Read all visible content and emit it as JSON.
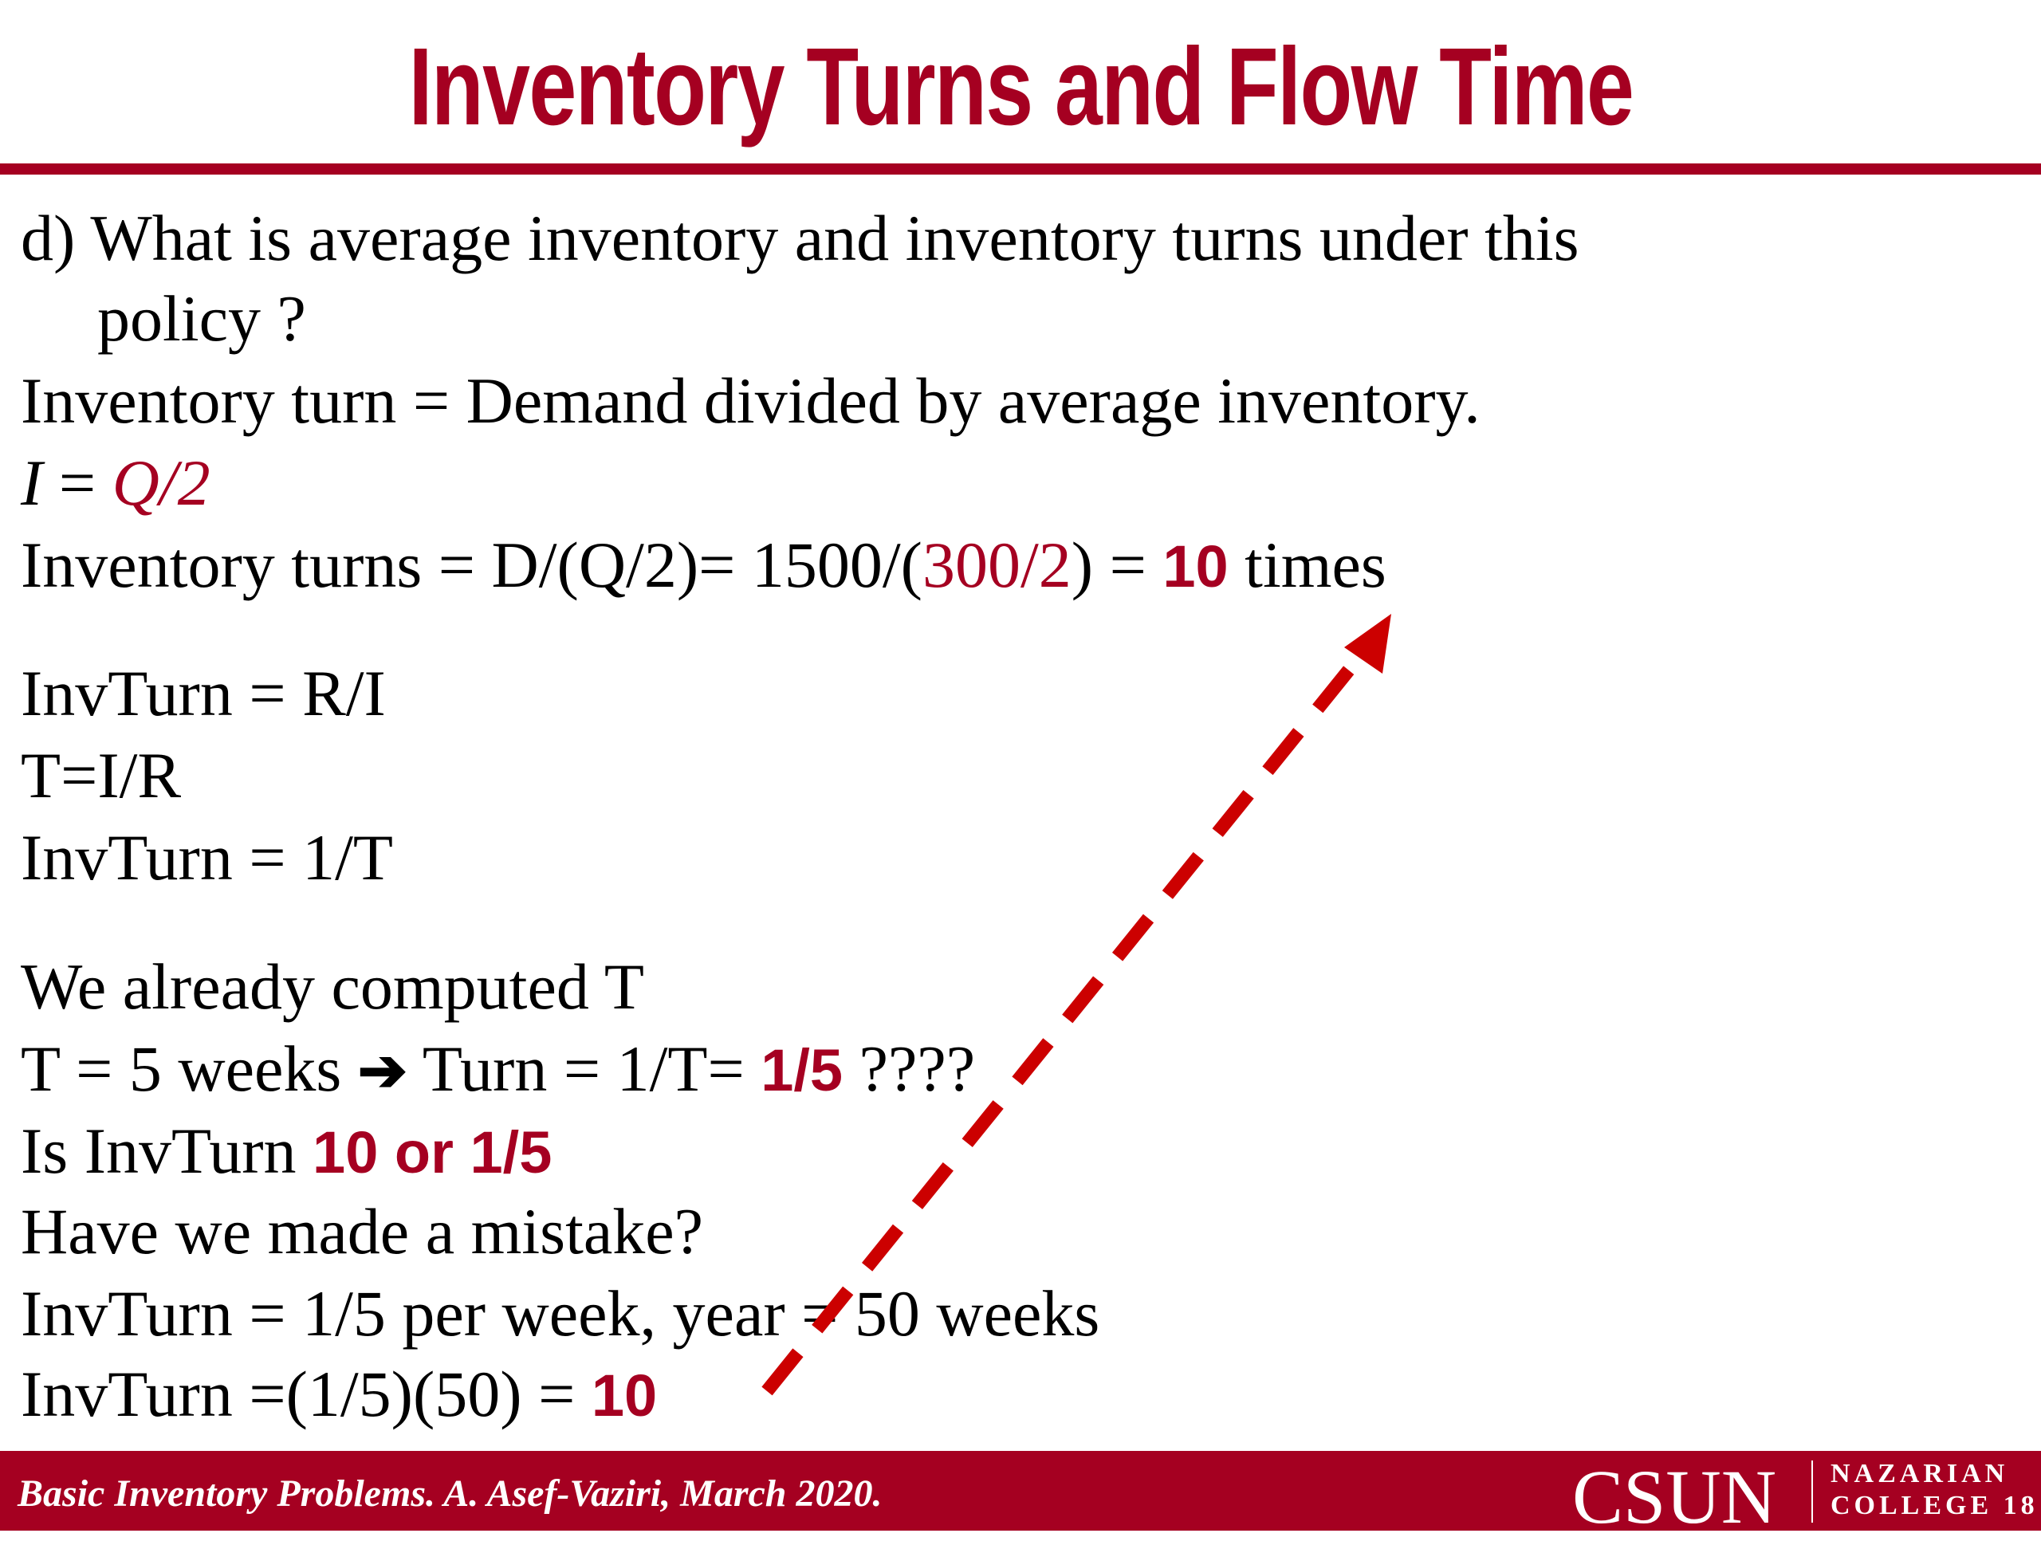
{
  "title": "Inventory Turns and Flow Time",
  "lines": [
    {
      "segments": [
        {
          "text": "d) What is average inventory and inventory turns under this"
        }
      ]
    },
    {
      "indent": true,
      "segments": [
        {
          "text": "policy ?"
        }
      ]
    },
    {
      "segments": [
        {
          "text": "Inventory turn = Demand divided by average inventory."
        }
      ]
    },
    {
      "segments": [
        {
          "text": "I",
          "italic": true
        },
        {
          "text": " = "
        },
        {
          "text": "Q/2",
          "italic": true,
          "color": "#a50021"
        }
      ]
    },
    {
      "segments": [
        {
          "text": "Inventory turns = D/(Q/2)= 1500/("
        },
        {
          "text": "300/2",
          "color": "#a50021"
        },
        {
          "text": ") = "
        },
        {
          "text": "10",
          "bold": true,
          "color": "#a50021"
        },
        {
          "text": " times"
        }
      ]
    },
    {
      "segments": [
        {
          "text": "InvTurn = R/I"
        }
      ]
    },
    {
      "segments": [
        {
          "text": "T=I/R"
        }
      ]
    },
    {
      "segments": [
        {
          "text": "InvTurn = 1/T"
        }
      ]
    },
    {
      "segments": [
        {
          "text": "We already computed T"
        }
      ]
    },
    {
      "segments": [
        {
          "text": "T = 5 weeks "
        },
        {
          "text": "➔",
          "bold": true
        },
        {
          "text": " Turn = 1/T= "
        },
        {
          "text": "1/5",
          "bold": true,
          "color": "#a50021"
        },
        {
          "text": " ????"
        }
      ]
    },
    {
      "segments": [
        {
          "text": "Is InvTurn "
        },
        {
          "text": "10 or 1/5",
          "bold": true,
          "color": "#a50021"
        }
      ]
    },
    {
      "segments": [
        {
          "text": "Have we made a mistake?"
        }
      ]
    },
    {
      "segments": [
        {
          "text": "InvTurn = 1/5 per week, year = 50 weeks"
        }
      ]
    },
    {
      "segments": [
        {
          "text": "InvTurn =(1/5)(50) = "
        },
        {
          "text": "10",
          "bold": true,
          "color": "#a50021"
        }
      ]
    }
  ],
  "footer": {
    "text": "Basic Inventory Problems. A. Asef-Vaziri, March 2020.",
    "logo": "CSUN",
    "college": "NAZARIAN",
    "college_line2": "COLLEGE",
    "page_number": "18"
  }
}
